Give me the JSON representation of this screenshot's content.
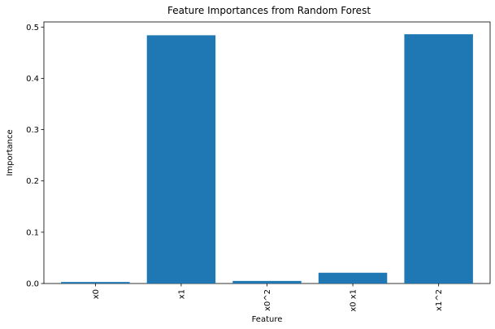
{
  "chart_data": {
    "type": "bar",
    "title": "Feature Importances from Random Forest",
    "xlabel": "Feature",
    "ylabel": "Importance",
    "categories": [
      "x0",
      "x1",
      "x0^2",
      "x0 x1",
      "x1^2"
    ],
    "values": [
      0.003,
      0.484,
      0.005,
      0.021,
      0.486
    ],
    "ylim": [
      0,
      0.51
    ],
    "yticks": [
      0.0,
      0.1,
      0.2,
      0.3,
      0.4,
      0.5
    ],
    "ytick_labels": [
      "0.0",
      "0.1",
      "0.2",
      "0.3",
      "0.4",
      "0.5"
    ],
    "x_tick_rotation": "vertical",
    "grid": false,
    "legend": "none",
    "colors": {
      "bar": "#1f77b4",
      "axes": "#000000",
      "background": "#ffffff"
    }
  }
}
